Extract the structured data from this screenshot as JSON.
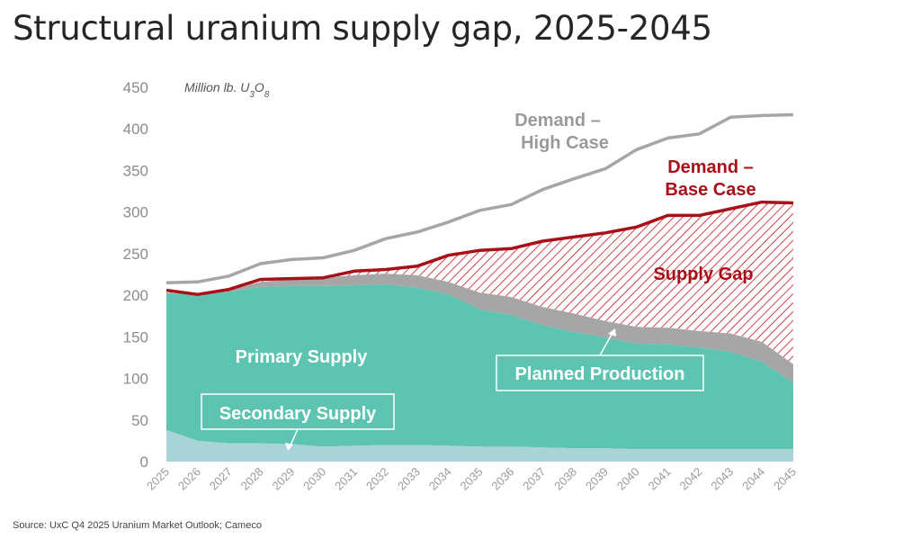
{
  "title": "Structural uranium supply gap, 2025-2045",
  "source": "Source: UxC Q4 2025 Uranium Market Outlook; Cameco",
  "colors": {
    "primary": "#5cc4b0",
    "secondary": "#a8d3d7",
    "planned": "#a6a6a6",
    "base_line": "#a8101a",
    "high_line": "#a6a6a6",
    "gap_hatch": "#c8141e"
  },
  "chart_data": {
    "type": "area",
    "title": "Structural uranium supply gap, 2025-2045",
    "ylabel_prefix": "Million lb. U",
    "ylabel_sub1": "3",
    "ylabel_mid": "O",
    "ylabel_sub2": "8",
    "ylim": [
      0,
      450
    ],
    "yticks": [
      "0",
      "50",
      "100",
      "150",
      "200",
      "250",
      "300",
      "350",
      "400",
      "450"
    ],
    "categories": [
      "2025",
      "2026",
      "2027",
      "2028",
      "2029",
      "2030",
      "2031",
      "2032",
      "2033",
      "2034",
      "2035",
      "2036",
      "2037",
      "2038",
      "2039",
      "2040",
      "2041",
      "2042",
      "2043",
      "2044",
      "2045"
    ],
    "grid": false,
    "series": [
      {
        "name": "Secondary Supply",
        "kind": "stacked-area",
        "values": [
          38,
          25,
          22,
          22,
          21,
          18,
          19,
          20,
          20,
          19,
          18,
          18,
          17,
          16,
          16,
          15,
          15,
          15,
          15,
          15,
          15
        ]
      },
      {
        "name": "Primary Supply",
        "kind": "stacked-area",
        "values": [
          165,
          175,
          182,
          188,
          190,
          193,
          193,
          193,
          189,
          182,
          165,
          158,
          147,
          140,
          133,
          127,
          126,
          122,
          117,
          105,
          80
        ]
      },
      {
        "name": "Planned Production",
        "kind": "stacked-area",
        "values": [
          0,
          0,
          2,
          6,
          8,
          10,
          12,
          13,
          15,
          15,
          20,
          22,
          22,
          22,
          20,
          20,
          20,
          20,
          22,
          24,
          22
        ]
      },
      {
        "name": "Demand – Base Case",
        "kind": "line",
        "values": [
          206,
          201,
          207,
          219,
          220,
          221,
          229,
          231,
          235,
          248,
          254,
          256,
          265,
          270,
          275,
          282,
          296,
          296,
          304,
          312,
          311
        ]
      },
      {
        "name": "Demand – High Case",
        "kind": "line",
        "values": [
          215,
          216,
          223,
          238,
          243,
          245,
          254,
          268,
          276,
          288,
          302,
          309,
          327,
          340,
          352,
          375,
          389,
          394,
          414,
          416,
          417
        ]
      }
    ],
    "labels": {
      "high_line1": "Demand –",
      "high_line2": "High Case",
      "base_line1": "Demand –",
      "base_line2": "Base Case",
      "gap": "Supply Gap",
      "primary": "Primary Supply",
      "secondary": "Secondary Supply",
      "planned": "Planned Production"
    }
  }
}
